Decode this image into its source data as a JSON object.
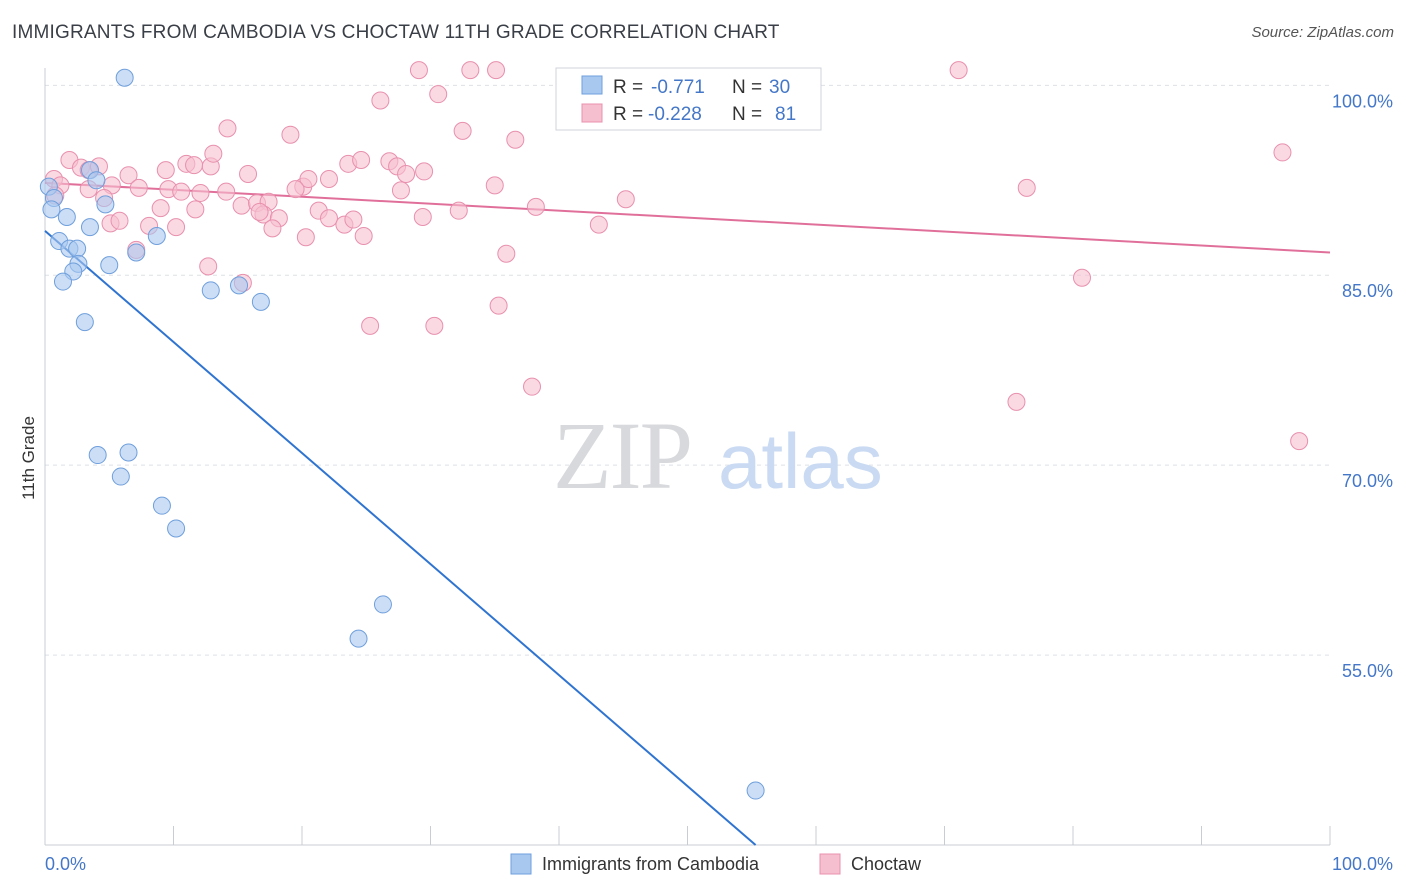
{
  "title": "IMMIGRANTS FROM CAMBODIA VS CHOCTAW 11TH GRADE CORRELATION CHART",
  "source": "Source: ZipAtlas.com",
  "watermark": {
    "zip": "ZIP",
    "atlas": "atlas"
  },
  "colors": {
    "blue": "#a9c8f0",
    "blue_stroke": "#6f9fdc",
    "blue_line": "#2f74d0",
    "pink": "#f6bfd0",
    "pink_stroke": "#e890ad",
    "pink_line": "#e0709a",
    "axis_text": "#4477c8",
    "grid": "#dde0e6"
  },
  "legend": {
    "rows": [
      {
        "r_label": "R =",
        "r_value": "-0.771",
        "n_label": "N =",
        "n_value": "30"
      },
      {
        "r_label": "R =",
        "r_value": "-0.228",
        "n_label": "N =",
        "n_value": "81"
      }
    ]
  },
  "chart_data": {
    "type": "scatter",
    "xlabel": "",
    "ylabel": "11th Grade",
    "xlim": [
      0,
      100
    ],
    "ylim": [
      40,
      102
    ],
    "x_tick_labels": [
      "0.0%",
      "100.0%"
    ],
    "y_ticks": [
      {
        "value": 100,
        "label": "100.0%"
      },
      {
        "value": 85,
        "label": "85.0%"
      },
      {
        "value": 70,
        "label": "70.0%"
      },
      {
        "value": 55,
        "label": "55.0%"
      }
    ],
    "series": [
      {
        "name": "Immigrants from Cambodia",
        "color": "#a9c8f0",
        "trend": {
          "x0": 0,
          "y0": 88.5,
          "x1": 55.3,
          "y1": 40
        },
        "points": [
          [
            6.2,
            100.6
          ],
          [
            0.3,
            92.0
          ],
          [
            0.7,
            91.1
          ],
          [
            0.5,
            90.2
          ],
          [
            1.7,
            89.6
          ],
          [
            3.5,
            93.3
          ],
          [
            4.0,
            92.5
          ],
          [
            4.7,
            90.6
          ],
          [
            3.5,
            88.8
          ],
          [
            1.1,
            87.7
          ],
          [
            1.9,
            87.1
          ],
          [
            2.5,
            87.1
          ],
          [
            7.1,
            86.8
          ],
          [
            8.7,
            88.1
          ],
          [
            2.6,
            85.9
          ],
          [
            2.2,
            85.3
          ],
          [
            5.0,
            85.8
          ],
          [
            1.4,
            84.5
          ],
          [
            12.9,
            83.8
          ],
          [
            15.1,
            84.2
          ],
          [
            16.8,
            82.9
          ],
          [
            3.1,
            81.3
          ],
          [
            4.1,
            70.8
          ],
          [
            6.5,
            71.0
          ],
          [
            5.9,
            69.1
          ],
          [
            9.1,
            66.8
          ],
          [
            10.2,
            65.0
          ],
          [
            26.3,
            59.0
          ],
          [
            24.4,
            56.3
          ],
          [
            55.3,
            44.3
          ]
        ]
      },
      {
        "name": "Choctaw",
        "color": "#f6bfd0",
        "trend": {
          "x0": 0,
          "y0": 92.3,
          "x1": 100,
          "y1": 86.8
        },
        "points": [
          [
            29.1,
            101.2
          ],
          [
            33.1,
            101.2
          ],
          [
            35.1,
            101.2
          ],
          [
            71.1,
            101.2
          ],
          [
            26.1,
            98.8
          ],
          [
            30.6,
            99.3
          ],
          [
            14.2,
            96.6
          ],
          [
            19.1,
            96.1
          ],
          [
            32.5,
            96.4
          ],
          [
            36.6,
            95.7
          ],
          [
            0.7,
            92.6
          ],
          [
            1.2,
            92.1
          ],
          [
            1.9,
            94.1
          ],
          [
            2.8,
            93.5
          ],
          [
            3.4,
            93.3
          ],
          [
            4.2,
            93.6
          ],
          [
            6.5,
            92.9
          ],
          [
            5.2,
            92.1
          ],
          [
            3.4,
            91.8
          ],
          [
            7.3,
            91.9
          ],
          [
            9.6,
            91.8
          ],
          [
            11.0,
            93.8
          ],
          [
            11.6,
            93.7
          ],
          [
            12.9,
            93.6
          ],
          [
            14.1,
            91.6
          ],
          [
            15.8,
            93.0
          ],
          [
            20.1,
            92.0
          ],
          [
            20.5,
            92.6
          ],
          [
            22.1,
            92.6
          ],
          [
            23.6,
            93.8
          ],
          [
            24.6,
            94.1
          ],
          [
            26.8,
            94.0
          ],
          [
            27.4,
            93.6
          ],
          [
            28.1,
            93.0
          ],
          [
            29.5,
            93.2
          ],
          [
            35.0,
            92.1
          ],
          [
            0.8,
            91.3
          ],
          [
            4.6,
            91.1
          ],
          [
            10.6,
            91.6
          ],
          [
            12.1,
            91.5
          ],
          [
            15.3,
            90.5
          ],
          [
            16.5,
            90.7
          ],
          [
            17.4,
            90.8
          ],
          [
            19.5,
            91.8
          ],
          [
            27.7,
            91.7
          ],
          [
            9.0,
            90.3
          ],
          [
            11.7,
            90.2
          ],
          [
            17.0,
            89.8
          ],
          [
            18.2,
            89.5
          ],
          [
            21.3,
            90.1
          ],
          [
            22.1,
            89.5
          ],
          [
            23.3,
            89.0
          ],
          [
            24.0,
            89.4
          ],
          [
            16.7,
            90.0
          ],
          [
            29.4,
            89.6
          ],
          [
            32.2,
            90.1
          ],
          [
            38.2,
            90.4
          ],
          [
            45.2,
            91.0
          ],
          [
            5.1,
            89.1
          ],
          [
            5.8,
            89.3
          ],
          [
            8.1,
            88.9
          ],
          [
            10.2,
            88.8
          ],
          [
            17.7,
            88.7
          ],
          [
            20.3,
            88.0
          ],
          [
            24.8,
            88.1
          ],
          [
            7.1,
            87.0
          ],
          [
            12.7,
            85.7
          ],
          [
            15.4,
            84.4
          ],
          [
            35.9,
            86.7
          ],
          [
            43.1,
            89.0
          ],
          [
            35.3,
            82.6
          ],
          [
            25.3,
            81.0
          ],
          [
            30.3,
            81.0
          ],
          [
            37.9,
            76.2
          ],
          [
            76.4,
            91.9
          ],
          [
            96.3,
            94.7
          ],
          [
            80.7,
            84.8
          ],
          [
            75.6,
            75.0
          ],
          [
            97.6,
            71.9
          ],
          [
            13.1,
            94.6
          ],
          [
            9.4,
            93.3
          ]
        ]
      }
    ]
  }
}
